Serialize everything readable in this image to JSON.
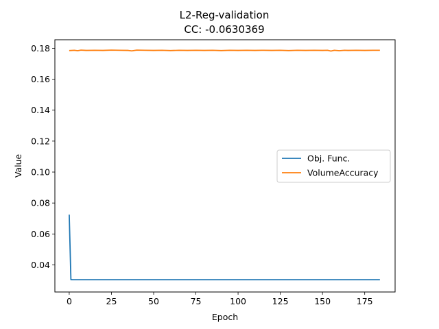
{
  "chart_data": {
    "type": "line",
    "title": "L2-Reg-validation",
    "subtitle": "CC: -0.0630369",
    "xlabel": "Epoch",
    "ylabel": "Value",
    "xlim": [
      -8.5,
      193
    ],
    "ylim": [
      0.0225,
      0.1855
    ],
    "xticks": [
      0,
      25,
      50,
      75,
      100,
      125,
      150,
      175
    ],
    "yticks": [
      0.04,
      0.06,
      0.08,
      0.1,
      0.12,
      0.14,
      0.16,
      0.18
    ],
    "xtick_labels": [
      "0",
      "25",
      "50",
      "75",
      "100",
      "125",
      "150",
      "175"
    ],
    "ytick_labels": [
      "0.04",
      "0.06",
      "0.08",
      "0.10",
      "0.12",
      "0.14",
      "0.16",
      "0.18"
    ],
    "grid": false,
    "legend_position": "center-right",
    "series": [
      {
        "name": "Obj. Func.",
        "color": "#1f77b4",
        "x": [
          0,
          1,
          2,
          5,
          10,
          25,
          50,
          75,
          100,
          125,
          150,
          175,
          184
        ],
        "y": [
          0.0725,
          0.0305,
          0.0304,
          0.0304,
          0.0304,
          0.0304,
          0.0304,
          0.0304,
          0.0304,
          0.0304,
          0.0304,
          0.0304,
          0.0304
        ]
      },
      {
        "name": "VolumeAccuracy",
        "color": "#ff7f0e",
        "x": [
          0,
          3,
          5,
          7,
          10,
          15,
          20,
          25,
          30,
          35,
          37,
          40,
          45,
          50,
          55,
          60,
          65,
          70,
          75,
          80,
          85,
          90,
          95,
          100,
          105,
          110,
          115,
          120,
          125,
          130,
          135,
          140,
          145,
          150,
          153,
          155,
          157,
          160,
          163,
          165,
          170,
          175,
          180,
          184
        ],
        "y": [
          0.1785,
          0.1787,
          0.1784,
          0.1788,
          0.1786,
          0.1787,
          0.1786,
          0.1788,
          0.1787,
          0.1786,
          0.1783,
          0.1788,
          0.1787,
          0.1786,
          0.1787,
          0.1785,
          0.1787,
          0.1786,
          0.1787,
          0.1786,
          0.1787,
          0.1785,
          0.1787,
          0.1786,
          0.1787,
          0.1786,
          0.1787,
          0.1786,
          0.1787,
          0.1785,
          0.1787,
          0.1786,
          0.1787,
          0.1786,
          0.1787,
          0.1782,
          0.1787,
          0.1784,
          0.1787,
          0.1786,
          0.1787,
          0.1786,
          0.1787,
          0.1787
        ]
      }
    ]
  }
}
